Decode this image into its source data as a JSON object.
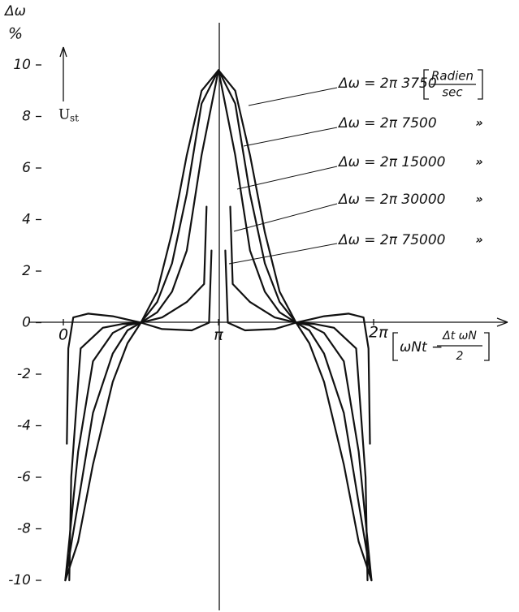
{
  "chart_data": {
    "type": "line",
    "y_label": "Δω",
    "y_unit": "%",
    "annotation": {
      "symbol": "U",
      "subscript": "st"
    },
    "x_label": {
      "left": "ωNt −",
      "numerator": "Δt ωN",
      "denominator": "2"
    },
    "unit": {
      "numerator": "Radien",
      "denominator": "sec"
    },
    "ditto": [
      "»",
      "»",
      "»",
      "»"
    ],
    "xlim": [
      0,
      6.2832
    ],
    "ylim": [
      -10,
      10
    ],
    "xticks": [
      0,
      {
        "value": 3.1416,
        "label": "π"
      },
      {
        "value": 6.2832,
        "label": "2π"
      }
    ],
    "yticks": [
      10,
      8,
      6,
      4,
      2,
      0,
      -2,
      -4,
      -6,
      -8,
      -10
    ],
    "series": [
      {
        "name": "Δω = 2π 3750",
        "color": "#111111",
        "x": [
          0.04,
          0.3,
          0.6,
          1.0,
          1.3,
          1.571,
          1.9,
          2.2,
          2.5,
          2.8,
          3.1416,
          3.48,
          3.78,
          4.08,
          4.38,
          4.712,
          4.98,
          5.28,
          5.68,
          5.98,
          6.24
        ],
        "values": [
          -10,
          -8.5,
          -5.5,
          -2.3,
          -0.8,
          0,
          1.2,
          3.5,
          6.5,
          9,
          9.8,
          9,
          6.5,
          3.5,
          1.2,
          0,
          -0.8,
          -2.3,
          -5.5,
          -8.5,
          -10
        ]
      },
      {
        "name": "Δω = 2π 7500",
        "color": "#111111",
        "x": [
          0.04,
          0.3,
          0.6,
          1.0,
          1.3,
          1.571,
          1.9,
          2.2,
          2.5,
          2.8,
          3.1416,
          3.48,
          3.78,
          4.08,
          4.38,
          4.712,
          4.98,
          5.28,
          5.68,
          5.98,
          6.24
        ],
        "values": [
          -10,
          -7,
          -3.5,
          -1.2,
          -0.3,
          0,
          0.8,
          2.3,
          5,
          8.5,
          9.8,
          8.5,
          5,
          2.3,
          0.8,
          0,
          -0.3,
          -1.2,
          -3.5,
          -7,
          -10
        ]
      },
      {
        "name": "Δω = 2π 15000",
        "color": "#111111",
        "x": [
          0.04,
          0.3,
          0.6,
          1.0,
          1.3,
          1.571,
          1.9,
          2.2,
          2.5,
          2.8,
          3.1416,
          3.48,
          3.78,
          4.08,
          4.38,
          4.712,
          4.98,
          5.28,
          5.68,
          5.98,
          6.24
        ],
        "values": [
          -10,
          -5,
          -1.5,
          -0.4,
          -0.1,
          0,
          0.4,
          1.2,
          2.8,
          6.5,
          9.8,
          6.5,
          2.8,
          1.2,
          0.4,
          0,
          -0.1,
          -0.4,
          -1.5,
          -5,
          -10
        ]
      },
      {
        "name": "Δω = 2π 30000",
        "color": "#111111",
        "x": [
          0.12,
          0.16,
          0.35,
          0.8,
          1.2,
          1.571,
          2.0,
          2.5,
          2.85,
          2.9,
          3.1416,
          3.38,
          3.43,
          3.78,
          4.28,
          4.712,
          5.08,
          5.48,
          5.93,
          6.12,
          6.16
        ],
        "values": [
          -10,
          -6,
          -1,
          -0.2,
          -0.05,
          0,
          0.2,
          0.8,
          1.5,
          4.5,
          null,
          4.5,
          1.5,
          0.8,
          0.2,
          0,
          -0.05,
          -0.2,
          -1,
          -6,
          -10
        ]
      },
      {
        "name": "Δω = 2π 75000",
        "color": "#111111",
        "x": [
          0.07,
          0.1,
          0.2,
          0.5,
          1.0,
          1.571,
          2.0,
          2.6,
          2.95,
          3.0,
          3.1416,
          3.28,
          3.33,
          3.68,
          4.28,
          4.712,
          5.28,
          5.78,
          6.08,
          6.18,
          6.21
        ],
        "values": [
          -4.7,
          -1,
          0.2,
          0.35,
          0.25,
          0,
          -0.25,
          -0.3,
          0,
          2.8,
          null,
          2.8,
          0,
          -0.3,
          -0.25,
          0,
          0.25,
          0.35,
          0.2,
          -1,
          -4.7
        ]
      }
    ]
  }
}
